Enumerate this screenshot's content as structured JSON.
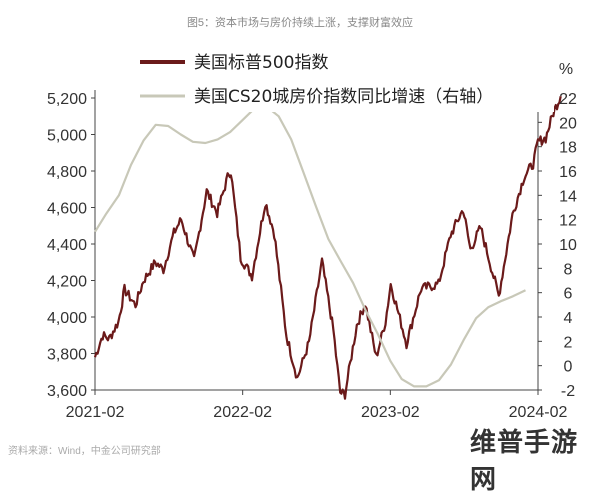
{
  "figure_title": "图5：资本市场与房价持续上涨，支撑财富效应",
  "source_note": "资料来源：Wind，中金公司研究部",
  "watermark": "维普手游网",
  "chart_data": {
    "type": "line",
    "title": "图5：资本市场与房价持续上涨，支撑财富效应",
    "y2_unit": "%",
    "xlim": [
      "2021-02",
      "2024-02"
    ],
    "ylim": [
      3600,
      5200
    ],
    "y2lim": [
      -2,
      22
    ],
    "x_ticks": [
      "2021-02",
      "2022-02",
      "2023-02",
      "2024-02"
    ],
    "y_ticks": [
      "3,600",
      "3,800",
      "4,000",
      "4,200",
      "4,400",
      "4,600",
      "4,800",
      "5,000",
      "5,200"
    ],
    "y2_ticks": [
      "-2",
      "0",
      "2",
      "4",
      "6",
      "8",
      "10",
      "12",
      "14",
      "16",
      "18",
      "20",
      "22"
    ],
    "legend": {
      "position": "top-left"
    },
    "series": [
      {
        "name": "美国标普500指数",
        "axis": "left",
        "color": "#6b1a1a",
        "points": [
          [
            "2021-02-01",
            3780
          ],
          [
            "2021-02-20",
            3900
          ],
          [
            "2021-03-08",
            3880
          ],
          [
            "2021-03-31",
            3975
          ],
          [
            "2021-04-15",
            4150
          ],
          [
            "2021-05-12",
            4065
          ],
          [
            "2021-06-01",
            4200
          ],
          [
            "2021-06-30",
            4300
          ],
          [
            "2021-07-20",
            4260
          ],
          [
            "2021-08-15",
            4460
          ],
          [
            "2021-09-02",
            4535
          ],
          [
            "2021-10-04",
            4310
          ],
          [
            "2021-11-04",
            4690
          ],
          [
            "2021-11-30",
            4570
          ],
          [
            "2021-12-29",
            4790
          ],
          [
            "2022-01-03",
            4795
          ],
          [
            "2022-01-27",
            4325
          ],
          [
            "2022-02-24",
            4225
          ],
          [
            "2022-03-29",
            4630
          ],
          [
            "2022-04-20",
            4460
          ],
          [
            "2022-05-20",
            3900
          ],
          [
            "2022-06-16",
            3665
          ],
          [
            "2022-07-15",
            3860
          ],
          [
            "2022-08-16",
            4305
          ],
          [
            "2022-09-13",
            3930
          ],
          [
            "2022-09-30",
            3585
          ],
          [
            "2022-10-12",
            3577
          ],
          [
            "2022-11-10",
            3955
          ],
          [
            "2022-12-01",
            4075
          ],
          [
            "2022-12-28",
            3780
          ],
          [
            "2023-01-20",
            3975
          ],
          [
            "2023-02-02",
            4180
          ],
          [
            "2023-03-13",
            3855
          ],
          [
            "2023-04-18",
            4155
          ],
          [
            "2023-05-31",
            4180
          ],
          [
            "2023-06-30",
            4450
          ],
          [
            "2023-07-31",
            4590
          ],
          [
            "2023-08-18",
            4370
          ],
          [
            "2023-09-12",
            4490
          ],
          [
            "2023-10-27",
            4115
          ],
          [
            "2023-11-30",
            4560
          ],
          [
            "2023-12-29",
            4770
          ],
          [
            "2024-01-20",
            4840
          ],
          [
            "2024-02-01",
            4960
          ],
          [
            "2024-02-20",
            4980
          ],
          [
            "2024-03-10",
            5120
          ],
          [
            "2024-03-28",
            5210
          ]
        ]
      },
      {
        "name": "美国CS20城房价指数同比增速（右轴）",
        "axis": "right",
        "color": "#c8c8b8",
        "points": [
          [
            "2021-02-01",
            11.0
          ],
          [
            "2021-03-01",
            12.5
          ],
          [
            "2021-04-01",
            14.0
          ],
          [
            "2021-05-01",
            16.5
          ],
          [
            "2021-06-01",
            18.5
          ],
          [
            "2021-07-01",
            19.8
          ],
          [
            "2021-08-01",
            19.7
          ],
          [
            "2021-09-01",
            19.0
          ],
          [
            "2021-10-01",
            18.4
          ],
          [
            "2021-11-01",
            18.3
          ],
          [
            "2021-12-01",
            18.6
          ],
          [
            "2022-01-01",
            19.2
          ],
          [
            "2022-02-01",
            20.2
          ],
          [
            "2022-03-01",
            21.1
          ],
          [
            "2022-04-01",
            21.3
          ],
          [
            "2022-05-01",
            20.5
          ],
          [
            "2022-06-01",
            18.6
          ],
          [
            "2022-07-01",
            15.9
          ],
          [
            "2022-08-01",
            13.1
          ],
          [
            "2022-09-01",
            10.4
          ],
          [
            "2022-10-01",
            8.6
          ],
          [
            "2022-11-01",
            6.8
          ],
          [
            "2022-12-01",
            4.6
          ],
          [
            "2023-01-01",
            2.6
          ],
          [
            "2023-02-01",
            0.4
          ],
          [
            "2023-03-01",
            -1.1
          ],
          [
            "2023-04-01",
            -1.7
          ],
          [
            "2023-05-01",
            -1.7
          ],
          [
            "2023-06-01",
            -1.2
          ],
          [
            "2023-07-01",
            0.1
          ],
          [
            "2023-08-01",
            2.1
          ],
          [
            "2023-09-01",
            3.9
          ],
          [
            "2023-10-01",
            4.8
          ],
          [
            "2023-11-01",
            5.3
          ],
          [
            "2023-12-01",
            5.7
          ],
          [
            "2024-01-01",
            6.2
          ]
        ]
      }
    ]
  }
}
